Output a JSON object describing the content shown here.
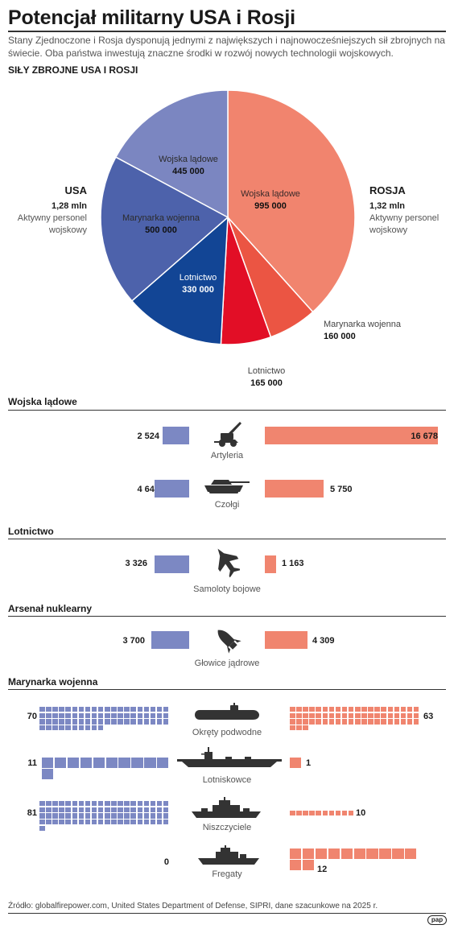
{
  "header": {
    "title": "Potencjał militarny USA i Rosji",
    "subtitle": "Stany Zjednoczone i Rosja dysponują jednymi z największych i najnowocześniejszych sił zbrojnych na świecie. Oba państwa inwestują znaczne środki w rozwój nowych technologii wojskowych."
  },
  "colors": {
    "usa_light": "#7b86c1",
    "usa_mid": "#4d62ab",
    "usa_dark": "#124595",
    "rus_light": "#f1846e",
    "rus_mid": "#eb5543",
    "rus_dark": "#e20e26",
    "bar_usa": "#7c88c3",
    "bar_rus": "#f0856f",
    "icon": "#333333"
  },
  "chart_data": [
    {
      "type": "pie",
      "title": "SIŁY ZBROJNE USA I ROSJI",
      "groups": [
        {
          "name": "USA",
          "total_value": "1,28 mln",
          "total_label": "Aktywny personel wojskowy",
          "slices": [
            {
              "label": "Wojska lądowe",
              "value": 445000,
              "value_label": "445 000",
              "color": "#7b86c1"
            },
            {
              "label": "Marynarka wojenna",
              "value": 500000,
              "value_label": "500 000",
              "color": "#4d62ab"
            },
            {
              "label": "Lotnictwo",
              "value": 330000,
              "value_label": "330 000",
              "color": "#124595"
            }
          ]
        },
        {
          "name": "ROSJA",
          "total_value": "1,32 mln",
          "total_label": "Aktywny personel wojskowy",
          "slices": [
            {
              "label": "Wojska lądowe",
              "value": 995000,
              "value_label": "995 000",
              "color": "#f1846e"
            },
            {
              "label": "Marynarka wojenna",
              "value": 160000,
              "value_label": "160 000",
              "color": "#eb5543"
            },
            {
              "label": "Lotnictwo",
              "value": 165000,
              "value_label": "165 000",
              "color": "#e20e26"
            }
          ]
        }
      ]
    },
    {
      "type": "bar",
      "orientation": "horizontal-mirrored",
      "series": [
        {
          "name": "USA"
        },
        {
          "name": "ROSJA"
        }
      ],
      "sections": [
        {
          "title": "Wojska lądowe",
          "rows": [
            {
              "label": "Artyleria",
              "icon": "artillery-icon",
              "usa": 2524,
              "usa_label": "2 524",
              "rus": 16678,
              "rus_label": "16 678"
            },
            {
              "label": "Czołgi",
              "icon": "tank-icon",
              "usa": 4640,
              "usa_label": "4 640",
              "rus": 5750,
              "rus_label": "5 750"
            }
          ]
        },
        {
          "title": "Lotnictwo",
          "rows": [
            {
              "label": "Samoloty bojowe",
              "icon": "fighter-jet-icon",
              "usa": 3326,
              "usa_label": "3 326",
              "rus": 1163,
              "rus_label": "1 163"
            }
          ]
        },
        {
          "title": "Arsenał nuklearny",
          "rows": [
            {
              "label": "Głowice jądrowe",
              "icon": "warhead-icon",
              "usa": 3700,
              "usa_label": "3 700",
              "rus": 4309,
              "rus_label": "4 309"
            }
          ]
        }
      ]
    },
    {
      "type": "table",
      "title": "Marynarka wojenna",
      "rows": [
        {
          "label": "Okręty podwodne",
          "icon": "submarine-icon",
          "usa": 70,
          "usa_label": "70",
          "rus": 63,
          "rus_label": "63"
        },
        {
          "label": "Lotniskowce",
          "icon": "aircraft-carrier-icon",
          "usa": 11,
          "usa_label": "11",
          "rus": 1,
          "rus_label": "1"
        },
        {
          "label": "Niszczyciele",
          "icon": "destroyer-icon",
          "usa": 81,
          "usa_label": "81",
          "rus": 10,
          "rus_label": "10"
        },
        {
          "label": "Fregaty",
          "icon": "frigate-icon",
          "usa": 0,
          "usa_label": "0",
          "rus": 12,
          "rus_label": "12"
        }
      ]
    }
  ],
  "footer": {
    "source": "Źródło: globalfirepower.com, United States Department of Defense, SIPRI, dane szacunkowe na 2025 r.",
    "logo_text": "pap"
  }
}
